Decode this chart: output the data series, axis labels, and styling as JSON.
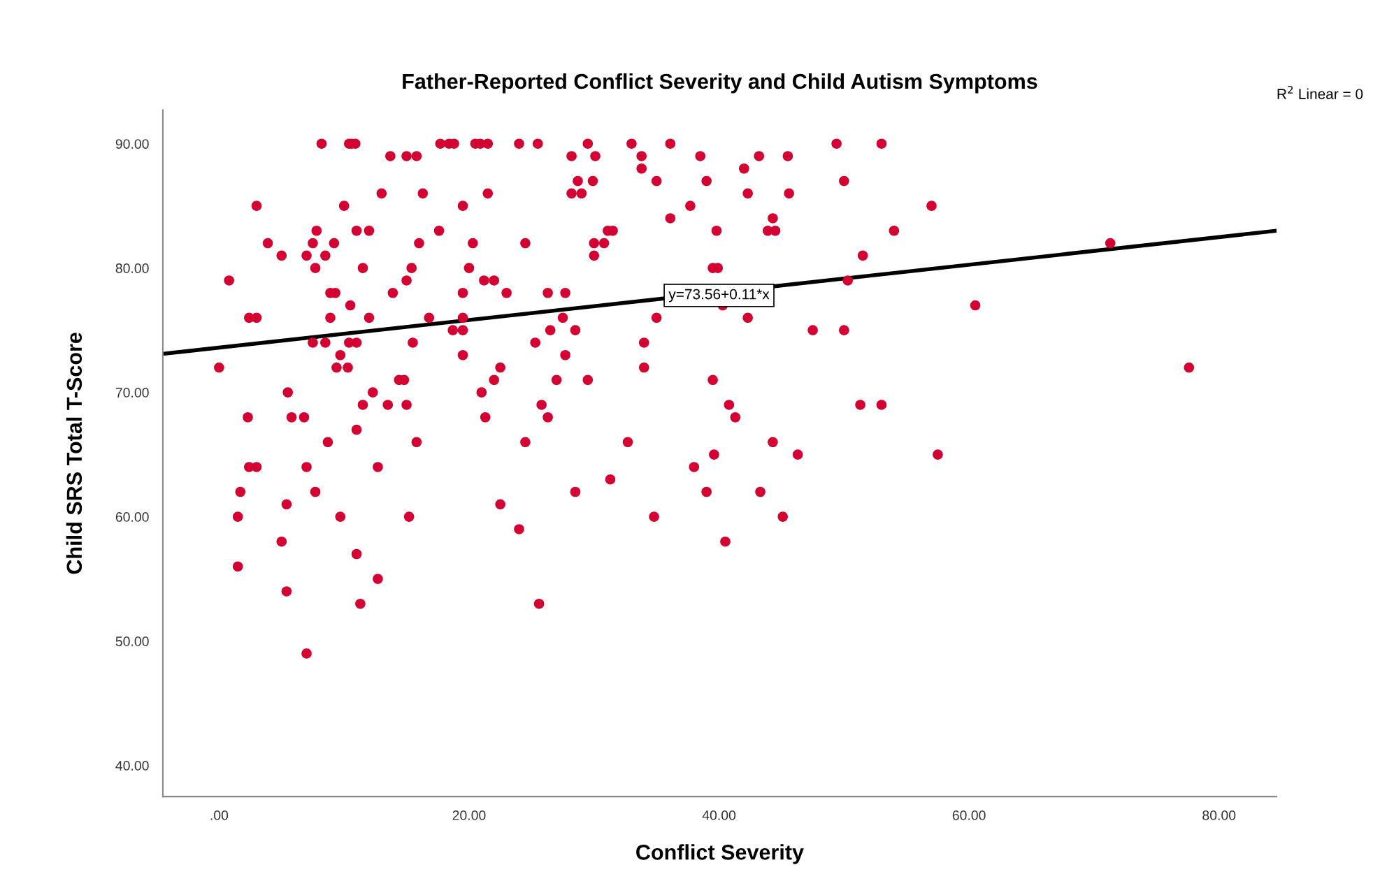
{
  "chart_data": {
    "type": "scatter",
    "title": "Father-Reported Conflict Severity and Child Autism Symptoms",
    "xlabel": "Conflict Severity",
    "ylabel": "Child SRS Total T-Score",
    "xlim": [
      -4.5,
      84.6
    ],
    "ylim": [
      37.5,
      92.7
    ],
    "xticks": [
      {
        "value": 0,
        "label": ".00"
      },
      {
        "value": 20,
        "label": "20.00"
      },
      {
        "value": 40,
        "label": "40.00"
      },
      {
        "value": 60,
        "label": "60.00"
      },
      {
        "value": 80,
        "label": "80.00"
      }
    ],
    "yticks": [
      {
        "value": 40,
        "label": "40.00"
      },
      {
        "value": 50,
        "label": "50.00"
      },
      {
        "value": 60,
        "label": "60.00"
      },
      {
        "value": 70,
        "label": "70.00"
      },
      {
        "value": 80,
        "label": "80.00"
      },
      {
        "value": 90,
        "label": "90.00"
      }
    ],
    "grid": false,
    "series": [
      {
        "color": "#d50032",
        "marker": "circle",
        "x": [
          8.2,
          10.4,
          10.6,
          10.9,
          17.7,
          18.4,
          18.8,
          20.5,
          20.9,
          21.5,
          24.0,
          25.5,
          29.5,
          33.0,
          36.1,
          49.4,
          53.0,
          13.7,
          15.0,
          15.8,
          28.2,
          30.1,
          33.8,
          38.5,
          43.2,
          45.5,
          33.8,
          42.0,
          28.7,
          29.9,
          35.0,
          39.0,
          50.0,
          13.0,
          16.3,
          21.5,
          28.2,
          29.0,
          42.3,
          45.6,
          3.0,
          10.0,
          19.5,
          37.7,
          57.0,
          36.1,
          44.3,
          7.8,
          11.0,
          12.0,
          17.6,
          31.1,
          31.5,
          39.8,
          43.9,
          44.5,
          54.0,
          3.9,
          7.5,
          9.2,
          16.0,
          20.3,
          24.5,
          30.0,
          30.8,
          71.3,
          5.0,
          7.0,
          8.5,
          30.0,
          51.5,
          7.7,
          11.5,
          15.4,
          20.0,
          39.5,
          39.9,
          0.8,
          15.0,
          21.2,
          22.0,
          50.3,
          8.9,
          9.3,
          13.9,
          19.5,
          23.0,
          26.3,
          27.7,
          10.5,
          40.3,
          60.5,
          2.4,
          3.0,
          8.9,
          12.0,
          16.8,
          19.5,
          27.5,
          35.0,
          42.3,
          18.7,
          19.5,
          26.5,
          28.5,
          47.5,
          50.0,
          7.5,
          8.5,
          10.4,
          11.0,
          15.5,
          25.3,
          34.0,
          9.7,
          19.5,
          27.7,
          0.0,
          9.4,
          10.3,
          22.5,
          34.0,
          77.6,
          14.4,
          14.8,
          22.0,
          27.0,
          29.5,
          39.5,
          5.5,
          12.3,
          21.0,
          11.5,
          13.5,
          15.0,
          25.8,
          40.8,
          51.3,
          53.0,
          2.3,
          5.8,
          6.8,
          21.3,
          26.3,
          41.3,
          11.0,
          8.7,
          15.8,
          24.5,
          32.7,
          44.3,
          39.6,
          46.3,
          57.5,
          2.4,
          3.0,
          7.0,
          12.7,
          38.0,
          31.3,
          1.7,
          7.7,
          28.5,
          39.0,
          43.3,
          5.4,
          22.5,
          1.5,
          9.7,
          15.2,
          34.8,
          45.1,
          24.0,
          5.0,
          40.5,
          11.0,
          1.5,
          12.7,
          5.4,
          11.3,
          25.6,
          7.0
        ],
        "values": [
          90,
          90,
          90,
          90,
          90,
          90,
          90,
          90,
          90,
          90,
          90,
          90,
          90,
          90,
          90,
          90,
          90,
          89,
          89,
          89,
          89,
          89,
          89,
          89,
          89,
          89,
          88,
          88,
          87,
          87,
          87,
          87,
          87,
          86,
          86,
          86,
          86,
          86,
          86,
          86,
          85,
          85,
          85,
          85,
          85,
          84,
          84,
          83,
          83,
          83,
          83,
          83,
          83,
          83,
          83,
          83,
          83,
          82,
          82,
          82,
          82,
          82,
          82,
          82,
          82,
          82,
          81,
          81,
          81,
          81,
          81,
          80,
          80,
          80,
          80,
          80,
          80,
          79,
          79,
          79,
          79,
          79,
          78,
          78,
          78,
          78,
          78,
          78,
          78,
          77,
          77,
          77,
          76,
          76,
          76,
          76,
          76,
          76,
          76,
          76,
          76,
          75,
          75,
          75,
          75,
          75,
          75,
          74,
          74,
          74,
          74,
          74,
          74,
          74,
          73,
          73,
          73,
          72,
          72,
          72,
          72,
          72,
          72,
          71,
          71,
          71,
          71,
          71,
          71,
          70,
          70,
          70,
          69,
          69,
          69,
          69,
          69,
          69,
          69,
          68,
          68,
          68,
          68,
          68,
          68,
          67,
          66,
          66,
          66,
          66,
          66,
          65,
          65,
          65,
          64,
          64,
          64,
          64,
          64,
          63,
          62,
          62,
          62,
          62,
          62,
          61,
          61,
          60,
          60,
          60,
          60,
          60,
          59,
          58,
          58,
          57,
          56,
          55,
          54,
          53,
          53,
          49
        ]
      },
      {
        "type": "line",
        "color": "#000000",
        "x": [
          -4.5,
          84.6
        ],
        "values": [
          73.1,
          83.0
        ],
        "line_style": "solid",
        "marker": "none"
      }
    ],
    "annotations": [
      {
        "text": "y=73.56+0.11*x",
        "x": 40,
        "y": 77.8
      },
      "R$^{2}$ Linear = 0"
    ]
  }
}
